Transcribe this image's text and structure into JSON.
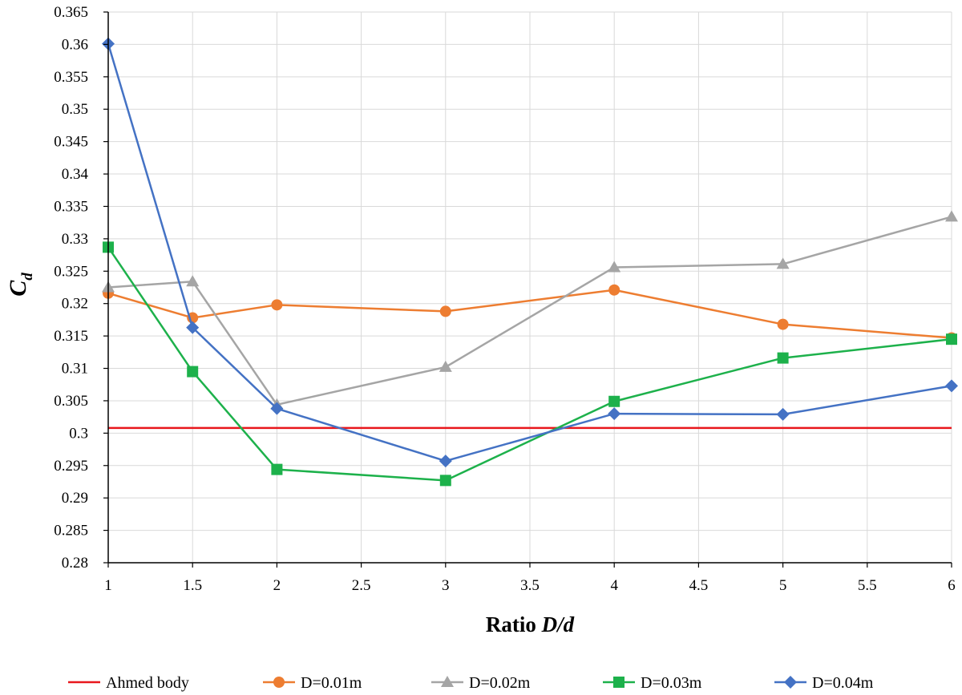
{
  "chart_data": {
    "type": "line",
    "title": "",
    "xlabel_prefix": "Ratio ",
    "xlabel_italic": "D/d",
    "ylabel_main": "C",
    "ylabel_sub": "d",
    "xlim": [
      1,
      6
    ],
    "ylim": [
      0.28,
      0.365
    ],
    "xticks": [
      "1",
      "1.5",
      "2",
      "2.5",
      "3",
      "3.5",
      "4",
      "4.5",
      "5",
      "5.5",
      "6"
    ],
    "yticks": [
      "0.28",
      "0.285",
      "0.29",
      "0.295",
      "0.3",
      "0.305",
      "0.31",
      "0.315",
      "0.32",
      "0.325",
      "0.33",
      "0.335",
      "0.34",
      "0.345",
      "0.35",
      "0.355",
      "0.36",
      "0.365"
    ],
    "grid": true,
    "legend_position": "bottom",
    "reference_line": {
      "name": "Ahmed body",
      "value": 0.3008,
      "color": "#e8171c"
    },
    "series": [
      {
        "name": "D=0.01m",
        "color": "#ed7d31",
        "marker": "circle",
        "x": [
          1,
          1.5,
          2,
          3,
          4,
          5,
          6
        ],
        "y": [
          0.3216,
          0.3178,
          0.3198,
          0.3188,
          0.3221,
          0.3168,
          0.3147
        ]
      },
      {
        "name": "D=0.02m",
        "color": "#a5a5a5",
        "marker": "triangle",
        "x": [
          1,
          1.5,
          2,
          3,
          4,
          5,
          6
        ],
        "y": [
          0.3225,
          0.3234,
          0.3044,
          0.3102,
          0.3256,
          0.3261,
          0.3334
        ]
      },
      {
        "name": "D=0.03m",
        "color": "#1db14b",
        "marker": "square",
        "x": [
          1,
          1.5,
          2,
          3,
          4,
          5,
          6
        ],
        "y": [
          0.3287,
          0.3095,
          0.2944,
          0.2927,
          0.3049,
          0.3116,
          0.3145
        ]
      },
      {
        "name": "D=0.04m",
        "color": "#4472c4",
        "marker": "diamond",
        "x": [
          1,
          1.5,
          2,
          3,
          4,
          5,
          6
        ],
        "y": [
          0.3601,
          0.3163,
          0.3038,
          0.2957,
          0.303,
          0.3029,
          0.3073
        ]
      }
    ]
  }
}
